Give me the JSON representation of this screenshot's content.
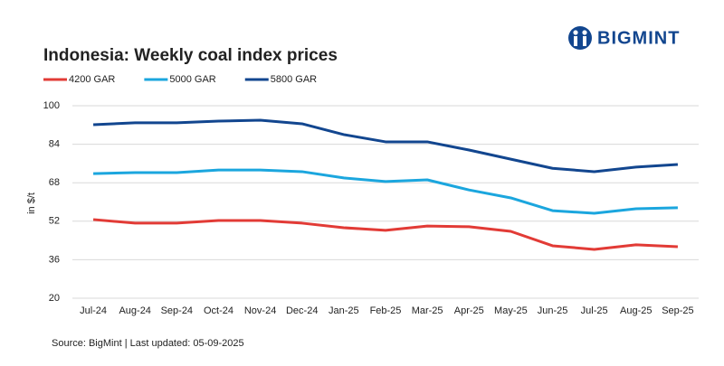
{
  "brand": "BIGMINT",
  "chart_data": {
    "type": "line",
    "title": "Indonesia: Weekly coal index prices",
    "y_label": "in $/t",
    "source": "Source: BigMint | Last updated: 05-09-2025",
    "categories": [
      "Jul-24",
      "Aug-24",
      "Sep-24",
      "Oct-24",
      "Nov-24",
      "Dec-24",
      "Jan-25",
      "Feb-25",
      "Mar-25",
      "Apr-25",
      "May-25",
      "Jun-25",
      "Jul-25",
      "Aug-25",
      "Sep-25"
    ],
    "series": [
      {
        "name": "4200 GAR",
        "color": "#e23b36",
        "values": [
          52.7,
          51.2,
          51.2,
          52.3,
          52.3,
          51.2,
          49.3,
          48.2,
          50,
          49.7,
          47.8,
          41.8,
          40.3,
          42.2,
          41.4
        ]
      },
      {
        "name": "5000 GAR",
        "color": "#1ba6de",
        "values": [
          71.8,
          72.2,
          72.2,
          73.3,
          73.3,
          72.6,
          70,
          68.5,
          69.2,
          65,
          61.7,
          56.4,
          55.3,
          57.2,
          57.6
        ]
      },
      {
        "name": "5800 GAR",
        "color": "#12468f",
        "values": [
          92.1,
          92.9,
          92.9,
          93.6,
          94,
          92.5,
          88,
          85,
          85,
          81.6,
          77.8,
          74,
          72.6,
          74.5,
          75.6
        ]
      }
    ],
    "ylim": [
      20,
      100
    ],
    "yticks": [
      20,
      36,
      52,
      68,
      84,
      100
    ],
    "grid": true
  }
}
